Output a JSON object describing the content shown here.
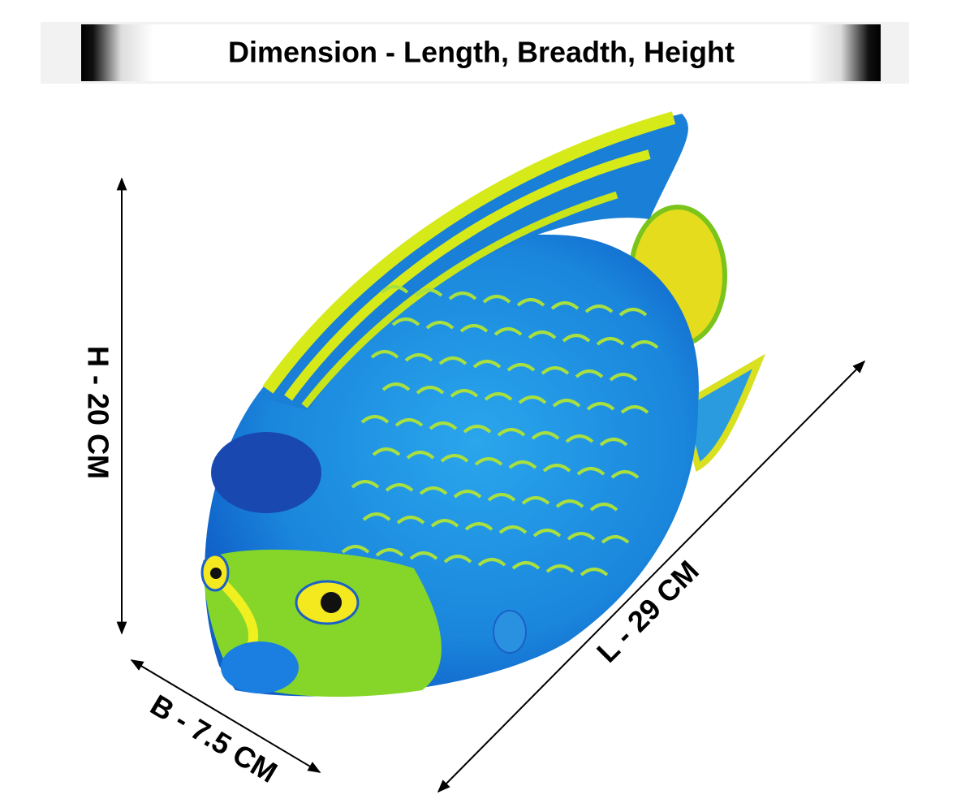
{
  "header": {
    "title": "Dimension - Length, Breadth, Height"
  },
  "dimensions": {
    "height": "H - 20 CM",
    "breadth": "B - 7.5 CM",
    "length": "L - 29 CM"
  }
}
